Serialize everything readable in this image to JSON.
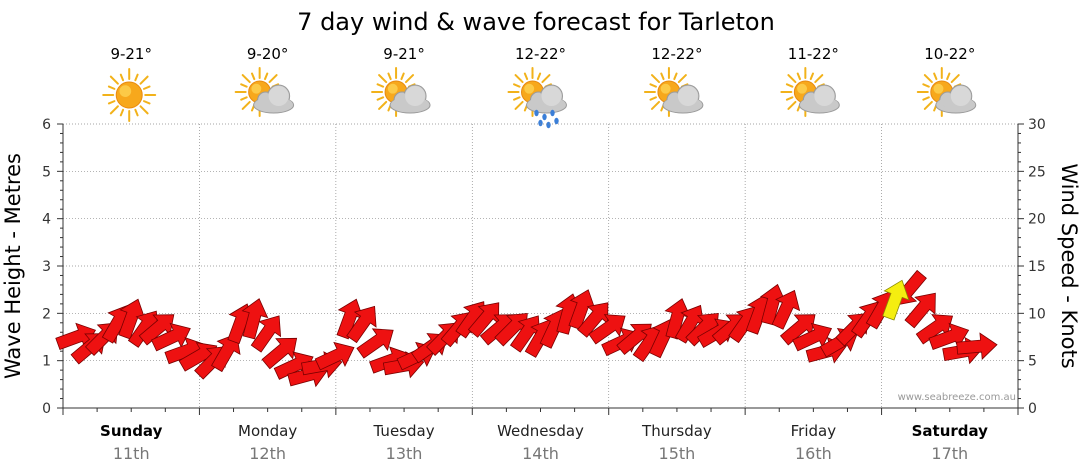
{
  "title": "7 day wind & wave forecast for Tarleton",
  "credit": "www.seabreeze.com.au",
  "colors": {
    "wind_arrow": "#ee1111",
    "wind_arrow_current": "#f5ee10",
    "grid": "#888888",
    "axis": "#333333"
  },
  "days": [
    {
      "name": "Sunday",
      "date": "11th",
      "temp": "9-21°",
      "icon": "sun-icon",
      "bold": true
    },
    {
      "name": "Monday",
      "date": "12th",
      "temp": "9-20°",
      "icon": "sun-cloud-icon",
      "bold": false
    },
    {
      "name": "Tuesday",
      "date": "13th",
      "temp": "9-21°",
      "icon": "sun-cloud-icon",
      "bold": false
    },
    {
      "name": "Wednesday",
      "date": "14th",
      "temp": "12-22°",
      "icon": "sun-cloud-rain-icon",
      "bold": false
    },
    {
      "name": "Thursday",
      "date": "15th",
      "temp": "12-22°",
      "icon": "sun-cloud-icon",
      "bold": false
    },
    {
      "name": "Friday",
      "date": "16th",
      "temp": "11-22°",
      "icon": "sun-cloud-icon",
      "bold": false
    },
    {
      "name": "Saturday",
      "date": "17th",
      "temp": "10-22°",
      "icon": "sun-cloud-icon",
      "bold": true
    }
  ],
  "chart_data": {
    "type": "line",
    "title": "7 day wind & wave forecast for Tarleton",
    "ylabel_left": "Wave Height - Metres",
    "ylabel_right": "Wind Speed - Knots",
    "ylim_left": [
      0,
      6
    ],
    "ylim_right": [
      0,
      30
    ],
    "yticks_left": [
      "0",
      "1",
      "2",
      "3",
      "4",
      "5",
      "6"
    ],
    "yticks_right": [
      "0",
      "5",
      "10",
      "15",
      "20",
      "25",
      "30"
    ],
    "x_unit": "days from start of Sunday 11th",
    "xlim": [
      0,
      7
    ],
    "grid": true,
    "series": [
      {
        "marker": "wind-arrow",
        "x": [
          0.0,
          0.1,
          0.2,
          0.3,
          0.4,
          0.5,
          0.6,
          0.7,
          0.8,
          0.9,
          1.0,
          1.1,
          1.2,
          1.3,
          1.4,
          1.5,
          1.6,
          1.7,
          1.8,
          1.9,
          2.0,
          2.1,
          2.2,
          2.3,
          2.4,
          2.5,
          2.6,
          2.7,
          2.8,
          2.9,
          3.0,
          3.1,
          3.2,
          3.3,
          3.4,
          3.5,
          3.6,
          3.7,
          3.8,
          3.9,
          4.0,
          4.1,
          4.2,
          4.3,
          4.4,
          4.5,
          4.6,
          4.7,
          4.8,
          4.9,
          5.0,
          5.1,
          5.2,
          5.3,
          5.4,
          5.5,
          5.6,
          5.7,
          5.8,
          5.9,
          6.0,
          6.1,
          6.2,
          6.3,
          6.4,
          6.5,
          6.6,
          6.7
        ],
        "values": [
          7.5,
          7.5,
          6.5,
          7.5,
          9.0,
          9.5,
          8.5,
          8.5,
          7.5,
          6.0,
          5.5,
          5.0,
          6.0,
          9.0,
          9.5,
          8.0,
          6.0,
          4.5,
          3.5,
          4.5,
          5.5,
          9.5,
          9.0,
          7.0,
          5.0,
          4.5,
          5.5,
          6.5,
          7.5,
          8.5,
          9.5,
          9.5,
          8.5,
          8.5,
          8.0,
          7.5,
          8.5,
          10.0,
          10.5,
          9.5,
          8.5,
          7.0,
          7.5,
          7.0,
          7.5,
          9.5,
          9.0,
          8.5,
          8.0,
          8.5,
          9.0,
          10.0,
          11.0,
          10.5,
          8.5,
          7.5,
          6.0,
          7.0,
          8.5,
          9.5,
          10.5,
          11.5,
          12.5,
          10.5,
          8.5,
          7.5,
          6.0,
          6.5
        ],
        "direction_deg": [
          240,
          250,
          230,
          225,
          210,
          200,
          215,
          230,
          245,
          250,
          240,
          225,
          210,
          200,
          195,
          215,
          230,
          245,
          255,
          260,
          245,
          200,
          215,
          235,
          250,
          260,
          245,
          235,
          225,
          220,
          215,
          220,
          230,
          225,
          215,
          210,
          205,
          195,
          200,
          220,
          235,
          245,
          230,
          215,
          205,
          195,
          210,
          225,
          240,
          230,
          215,
          200,
          195,
          205,
          230,
          245,
          255,
          240,
          225,
          215,
          210,
          200,
          40,
          220,
          235,
          250,
          260,
          265
        ]
      }
    ],
    "current_index": 61,
    "x_tick_labels": [
      "Sunday",
      "Monday",
      "Tuesday",
      "Wednesday",
      "Thursday",
      "Friday",
      "Saturday"
    ],
    "x_tick_sublabels": [
      "11th",
      "12th",
      "13th",
      "14th",
      "15th",
      "16th",
      "17th"
    ]
  }
}
